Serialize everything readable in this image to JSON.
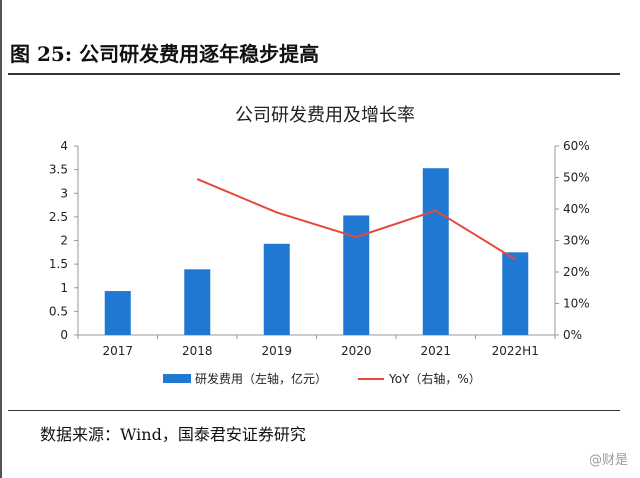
{
  "figure_heading": "图 25: 公司研发费用逐年稳步提高",
  "source_text": "数据来源：Wind，国泰君安证券研究",
  "watermark": "@财是",
  "colors": {
    "bar": "#1F78D1",
    "line": "#E8473B",
    "text": "#222222",
    "axis": "#999999"
  },
  "chart_data": {
    "type": "bar",
    "title": "公司研发费用及增长率",
    "categories": [
      "2017",
      "2018",
      "2019",
      "2020",
      "2021",
      "2022H1"
    ],
    "series": [
      {
        "name": "研发费用（左轴，亿元）",
        "type": "bar",
        "axis": "left",
        "values": [
          0.93,
          1.39,
          1.93,
          2.53,
          3.53,
          1.75
        ]
      },
      {
        "name": "YoY（右轴，%）",
        "type": "line",
        "axis": "right",
        "values": [
          null,
          49.5,
          38.9,
          31.1,
          39.5,
          24.0
        ]
      }
    ],
    "y_left": {
      "min": 0,
      "max": 4,
      "ticks": [
        "0",
        "0.5",
        "1",
        "1.5",
        "2",
        "2.5",
        "3",
        "3.5",
        "4"
      ]
    },
    "y_right": {
      "min": 0,
      "max": 60,
      "ticks": [
        "0%",
        "10%",
        "20%",
        "30%",
        "40%",
        "50%",
        "60%"
      ]
    },
    "grid": false,
    "legend_position": "bottom"
  }
}
